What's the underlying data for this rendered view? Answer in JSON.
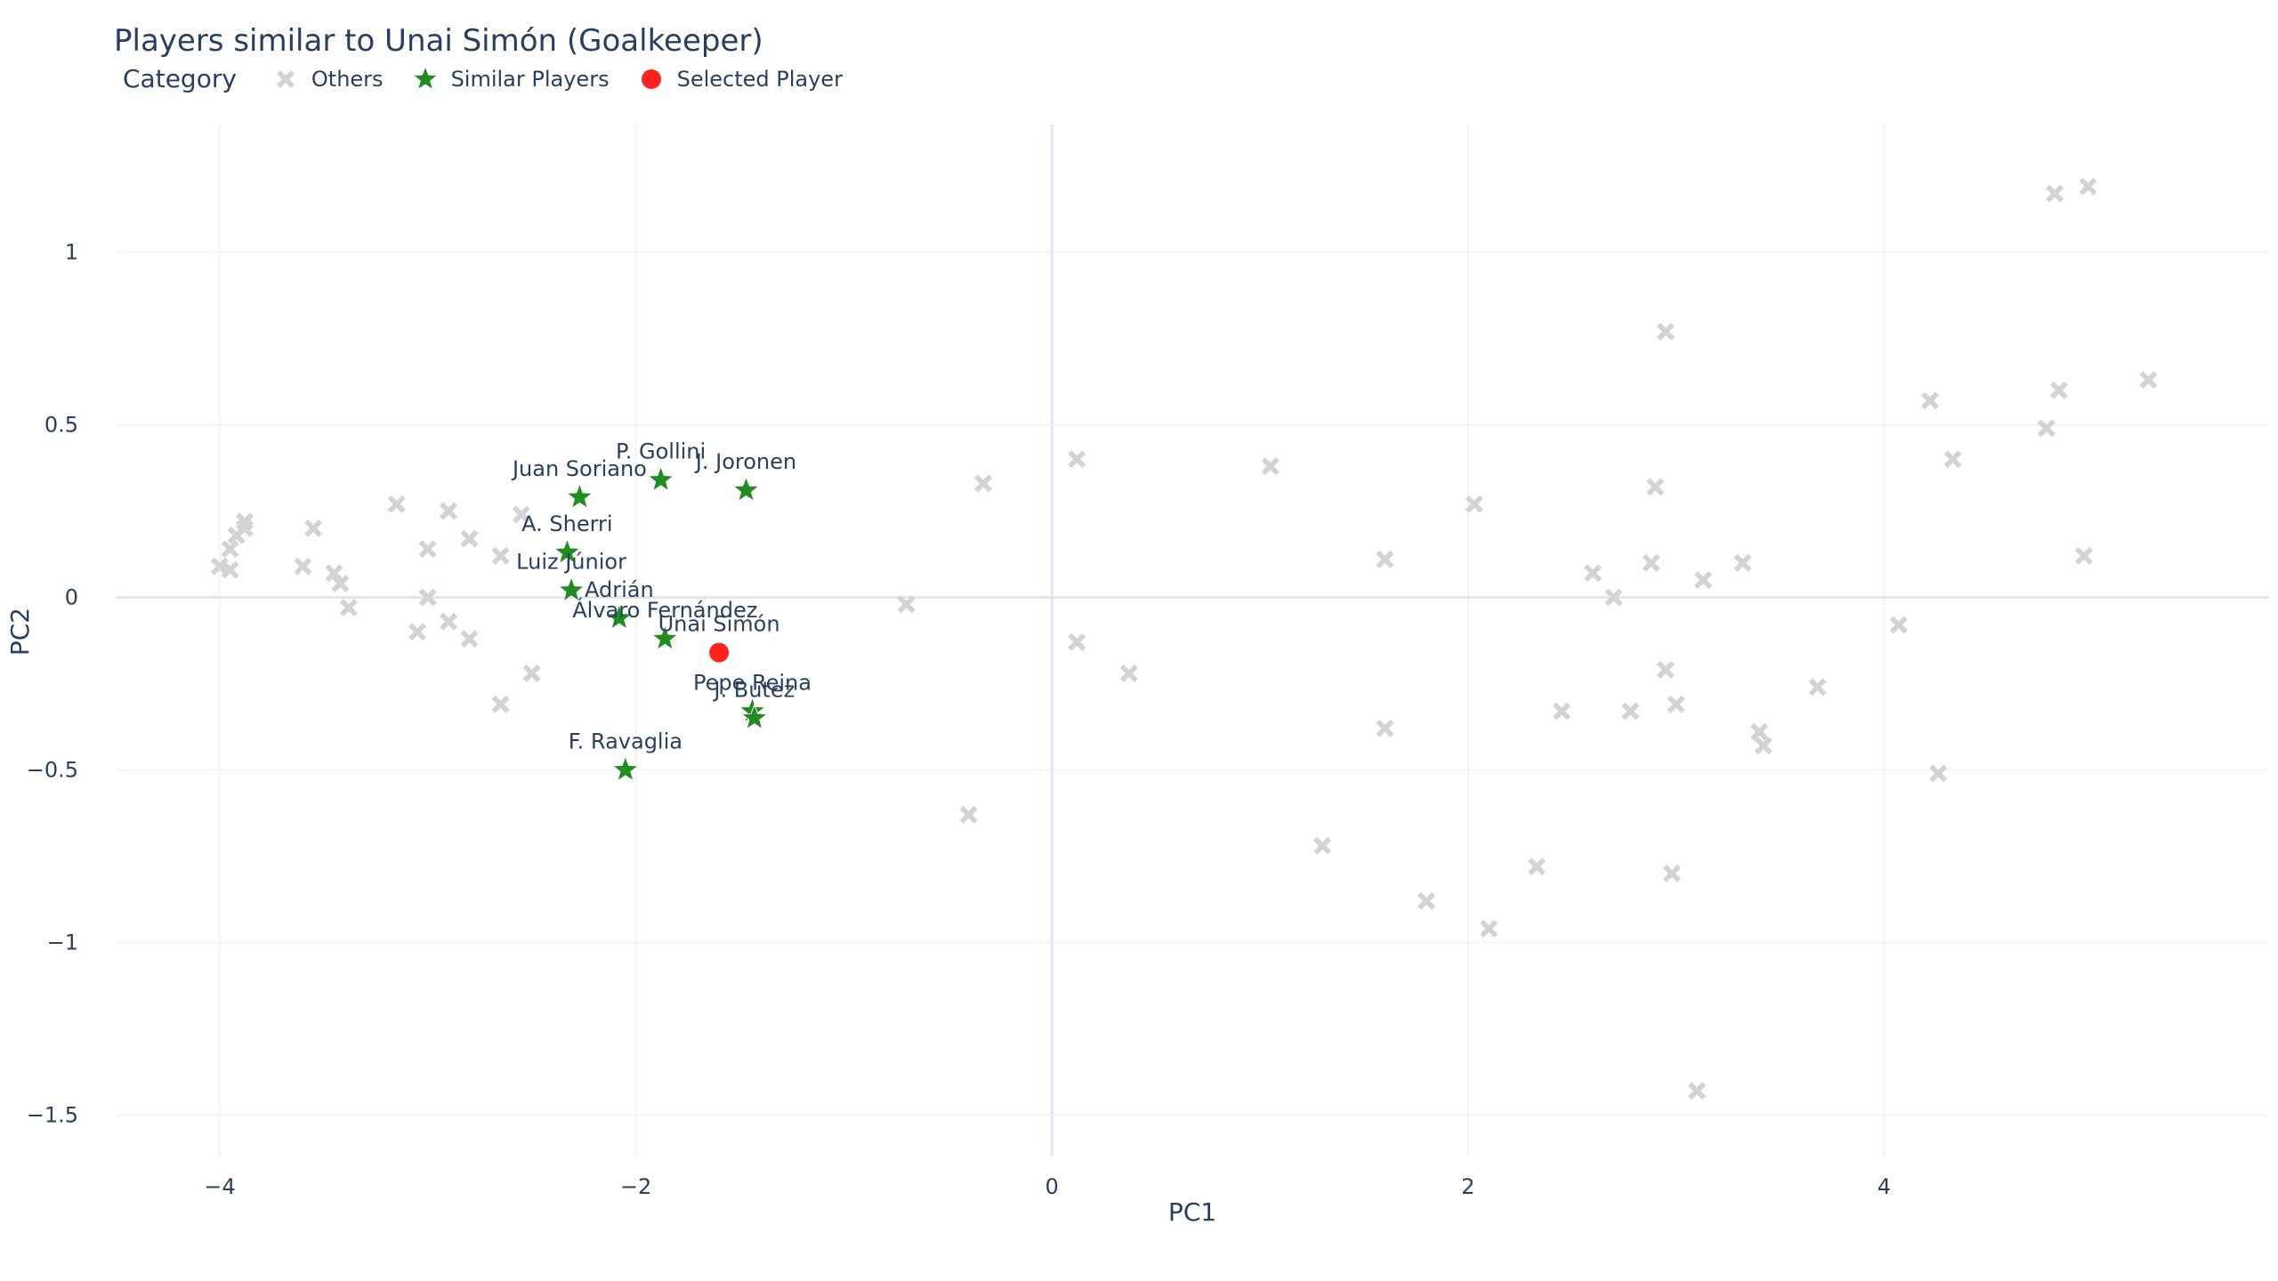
{
  "chart_data": {
    "type": "scatter",
    "title": "Players similar to Unai Simón (Goalkeeper)",
    "xlabel": "PC1",
    "ylabel": "PC2",
    "xlim": [
      -4.5,
      5.85
    ],
    "ylim": [
      -1.62,
      1.37
    ],
    "xticks": [
      -4,
      -2,
      0,
      2,
      4
    ],
    "xtick_labels": [
      "−4",
      "−2",
      "0",
      "2",
      "4"
    ],
    "yticks": [
      -1.5,
      -1,
      -0.5,
      0,
      0.5,
      1
    ],
    "ytick_labels": [
      "−1.5",
      "−1",
      "−0.5",
      "0",
      "0.5",
      "1"
    ],
    "grid": true,
    "legend": {
      "title": "Category",
      "placement": "top-left, horizontal",
      "entries": [
        "Others",
        "Similar Players",
        "Selected Player"
      ]
    },
    "colors": {
      "others": "#d3d3d3",
      "similar": "#228b22",
      "selected": "#ff2020"
    },
    "series": [
      {
        "name": "Others",
        "marker": "x",
        "points": [
          [
            -4.0,
            0.09
          ],
          [
            -3.95,
            0.08
          ],
          [
            -3.95,
            0.14
          ],
          [
            -3.92,
            0.18
          ],
          [
            -3.88,
            0.22
          ],
          [
            -3.88,
            0.2
          ],
          [
            -3.55,
            0.2
          ],
          [
            -3.6,
            0.09
          ],
          [
            -3.45,
            0.07
          ],
          [
            -3.42,
            0.04
          ],
          [
            -3.38,
            -0.03
          ],
          [
            -3.15,
            0.27
          ],
          [
            -3.05,
            -0.1
          ],
          [
            -3.0,
            0.14
          ],
          [
            -3.0,
            0.0
          ],
          [
            -2.9,
            0.25
          ],
          [
            -2.9,
            -0.07
          ],
          [
            -2.8,
            0.17
          ],
          [
            -2.8,
            -0.12
          ],
          [
            -2.65,
            0.12
          ],
          [
            -2.65,
            -0.31
          ],
          [
            -2.55,
            0.24
          ],
          [
            -2.5,
            -0.22
          ],
          [
            -0.7,
            -0.02
          ],
          [
            -0.4,
            -0.63
          ],
          [
            -0.33,
            0.33
          ],
          [
            0.12,
            0.4
          ],
          [
            0.12,
            -0.13
          ],
          [
            0.37,
            -0.22
          ],
          [
            1.05,
            0.38
          ],
          [
            1.3,
            -0.72
          ],
          [
            1.6,
            0.11
          ],
          [
            1.6,
            -0.38
          ],
          [
            1.8,
            -0.88
          ],
          [
            2.03,
            0.27
          ],
          [
            2.1,
            -0.96
          ],
          [
            2.33,
            -0.78
          ],
          [
            2.45,
            -0.33
          ],
          [
            2.6,
            0.07
          ],
          [
            2.7,
            0.0
          ],
          [
            2.78,
            -0.33
          ],
          [
            2.88,
            0.1
          ],
          [
            2.9,
            0.32
          ],
          [
            2.95,
            0.77
          ],
          [
            2.95,
            -0.21
          ],
          [
            2.98,
            -0.8
          ],
          [
            3.0,
            -0.31
          ],
          [
            3.1,
            -1.43
          ],
          [
            3.13,
            0.05
          ],
          [
            3.32,
            0.1
          ],
          [
            3.4,
            -0.39
          ],
          [
            3.42,
            -0.43
          ],
          [
            3.68,
            -0.26
          ],
          [
            4.07,
            -0.08
          ],
          [
            4.22,
            0.57
          ],
          [
            4.26,
            -0.51
          ],
          [
            4.33,
            0.4
          ],
          [
            4.78,
            0.49
          ],
          [
            4.82,
            1.17
          ],
          [
            4.84,
            0.6
          ],
          [
            4.96,
            0.12
          ],
          [
            4.98,
            1.19
          ],
          [
            5.27,
            0.63
          ]
        ]
      },
      {
        "name": "Similar Players",
        "marker": "star",
        "points": [
          {
            "x": -2.27,
            "y": 0.29,
            "label": "Juan Soriano"
          },
          {
            "x": -1.88,
            "y": 0.34,
            "label": "P. Gollini"
          },
          {
            "x": -1.47,
            "y": 0.31,
            "label": "J. Joronen"
          },
          {
            "x": -2.33,
            "y": 0.13,
            "label": "A. Sherri"
          },
          {
            "x": -2.31,
            "y": 0.02,
            "label": "Luiz Júnior"
          },
          {
            "x": -2.08,
            "y": -0.06,
            "label": "Adrián"
          },
          {
            "x": -1.86,
            "y": -0.12,
            "label": "Álvaro Fernández"
          },
          {
            "x": -1.44,
            "y": -0.33,
            "label": "Pepe Reina"
          },
          {
            "x": -1.43,
            "y": -0.35,
            "label": "J. Butez"
          },
          {
            "x": -2.05,
            "y": -0.5,
            "label": "F. Ravaglia"
          }
        ]
      },
      {
        "name": "Selected Player",
        "marker": "circle",
        "points": [
          {
            "x": -1.6,
            "y": -0.16,
            "label": "Unai Simón"
          }
        ]
      }
    ]
  }
}
